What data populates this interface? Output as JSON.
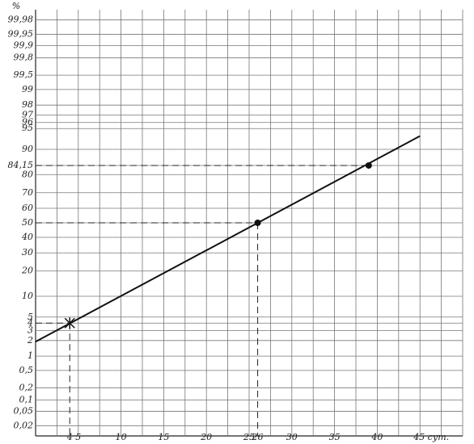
{
  "chart_data": {
    "type": "line",
    "y_unit": "%",
    "xlim": [
      0,
      50
    ],
    "xticks": [
      4,
      5,
      10,
      15,
      20,
      25,
      26,
      30,
      35,
      40,
      {
        "value": 45,
        "label": "45 сут."
      }
    ],
    "xgrid": [
      2.5,
      5,
      7.5,
      10,
      12.5,
      15,
      17.5,
      20,
      22.5,
      25,
      27.5,
      30,
      32.5,
      35,
      37.5,
      40,
      42.5,
      45,
      47.5,
      50
    ],
    "ylim": [
      0.01,
      99.99
    ],
    "yscale": "probability",
    "yticks": [
      {
        "value": 0.02,
        "label": "0,02"
      },
      {
        "value": 0.05,
        "label": "0,05"
      },
      {
        "value": 0.1,
        "label": "0,1"
      },
      {
        "value": 0.2,
        "label": "0,2"
      },
      {
        "value": 0.5,
        "label": "0,5"
      },
      1,
      2,
      3,
      4,
      5,
      10,
      20,
      30,
      40,
      50,
      60,
      70,
      80,
      {
        "value": 84.15,
        "label": "84,15"
      },
      90,
      95,
      96,
      97,
      98,
      99,
      {
        "value": 99.5,
        "label": "99,5"
      },
      {
        "value": 99.8,
        "label": "99,8"
      },
      {
        "value": 99.9,
        "label": "99,9"
      },
      {
        "value": 99.95,
        "label": "99,95"
      },
      {
        "value": 99.98,
        "label": "99,98"
      }
    ],
    "grid": true,
    "color": "#111111",
    "line": {
      "x": [
        0,
        45
      ],
      "values": [
        1.9,
        93.5
      ]
    },
    "points": {
      "x": [
        4,
        26,
        39
      ],
      "values": [
        4,
        50,
        84.15
      ],
      "markers": [
        "star",
        "dot",
        "dot"
      ]
    }
  }
}
